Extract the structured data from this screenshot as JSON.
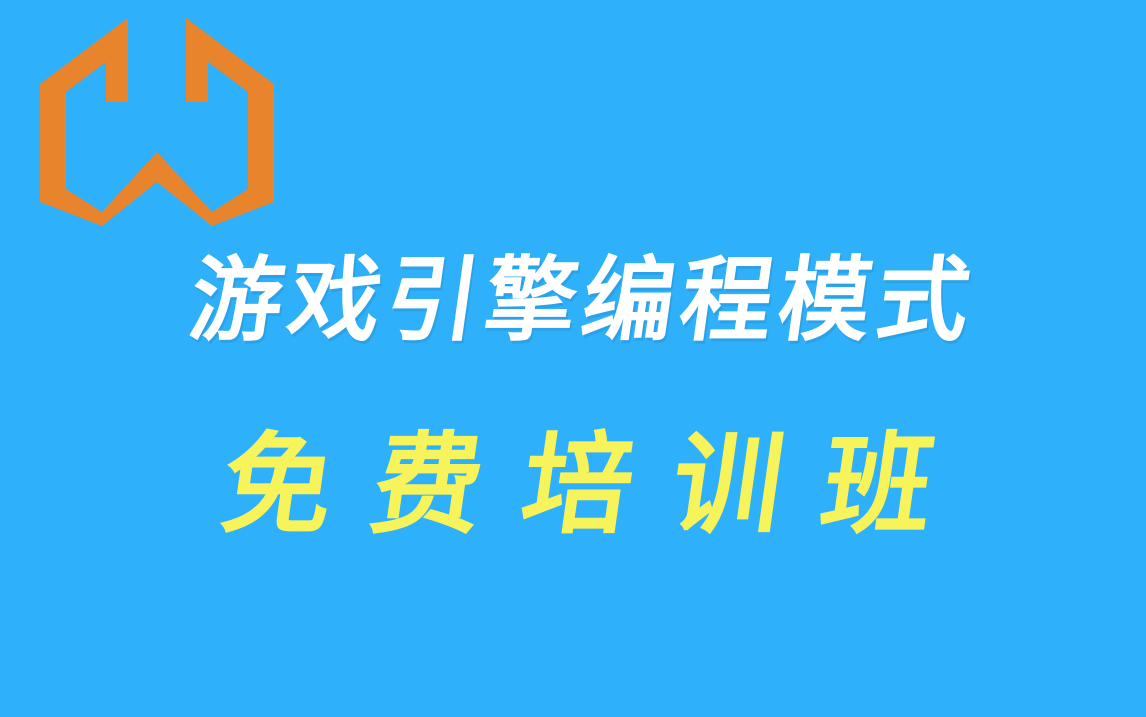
{
  "title": "游戏引擎编程模式",
  "subtitle": "免费培训班",
  "colors": {
    "background": "#2fb0fb",
    "logo": "#e8842c",
    "title": "#ffffff",
    "subtitle": "#f7f35a"
  },
  "logo": {
    "icon": "hexagon-w-logo-icon"
  }
}
